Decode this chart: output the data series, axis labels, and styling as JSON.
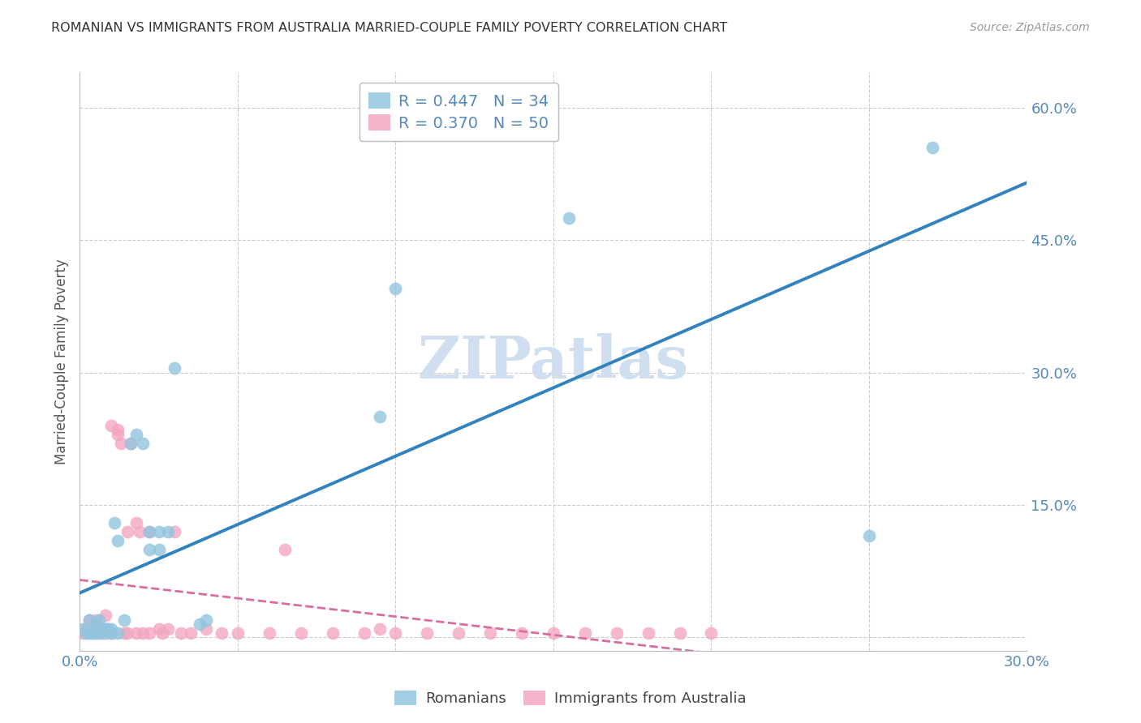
{
  "title": "ROMANIAN VS IMMIGRANTS FROM AUSTRALIA MARRIED-COUPLE FAMILY POVERTY CORRELATION CHART",
  "source": "Source: ZipAtlas.com",
  "ylabel": "Married-Couple Family Poverty",
  "xmin": 0.0,
  "xmax": 0.3,
  "ymin": -0.015,
  "ymax": 0.64,
  "color_blue": "#92c5de",
  "color_pink": "#f4a6c0",
  "color_blue_line": "#3182bd",
  "color_pink_line": "#d46fa0",
  "color_axis": "#5588bb",
  "color_title": "#333333",
  "watermark_color": "#d0dff0",
  "romanians_x": [
    0.001,
    0.002,
    0.003,
    0.003,
    0.004,
    0.005,
    0.005,
    0.006,
    0.006,
    0.007,
    0.008,
    0.008,
    0.009,
    0.01,
    0.01,
    0.011,
    0.012,
    0.012,
    0.014,
    0.016,
    0.018,
    0.02,
    0.022,
    0.022,
    0.025,
    0.025,
    0.028,
    0.03,
    0.038,
    0.04,
    0.095,
    0.1,
    0.155,
    0.25,
    0.27
  ],
  "romanians_y": [
    0.01,
    0.005,
    0.02,
    0.005,
    0.005,
    0.015,
    0.005,
    0.02,
    0.005,
    0.01,
    0.005,
    0.01,
    0.01,
    0.01,
    0.005,
    0.13,
    0.11,
    0.005,
    0.02,
    0.22,
    0.23,
    0.22,
    0.12,
    0.1,
    0.12,
    0.1,
    0.12,
    0.305,
    0.015,
    0.02,
    0.25,
    0.395,
    0.475,
    0.115,
    0.555
  ],
  "australia_x": [
    0.001,
    0.002,
    0.003,
    0.004,
    0.005,
    0.006,
    0.007,
    0.008,
    0.009,
    0.01,
    0.01,
    0.012,
    0.012,
    0.013,
    0.014,
    0.015,
    0.015,
    0.016,
    0.018,
    0.018,
    0.019,
    0.02,
    0.022,
    0.022,
    0.025,
    0.026,
    0.028,
    0.03,
    0.032,
    0.035,
    0.04,
    0.045,
    0.05,
    0.06,
    0.065,
    0.07,
    0.08,
    0.09,
    0.095,
    0.1,
    0.11,
    0.12,
    0.13,
    0.14,
    0.15,
    0.16,
    0.17,
    0.18,
    0.19,
    0.2
  ],
  "australia_y": [
    0.005,
    0.01,
    0.02,
    0.005,
    0.02,
    0.01,
    0.005,
    0.025,
    0.01,
    0.24,
    0.005,
    0.23,
    0.235,
    0.22,
    0.005,
    0.005,
    0.12,
    0.22,
    0.13,
    0.005,
    0.12,
    0.005,
    0.005,
    0.12,
    0.01,
    0.005,
    0.01,
    0.12,
    0.005,
    0.005,
    0.01,
    0.005,
    0.005,
    0.005,
    0.1,
    0.005,
    0.005,
    0.005,
    0.01,
    0.005,
    0.005,
    0.005,
    0.005,
    0.005,
    0.005,
    0.005,
    0.005,
    0.005,
    0.005,
    0.005
  ]
}
